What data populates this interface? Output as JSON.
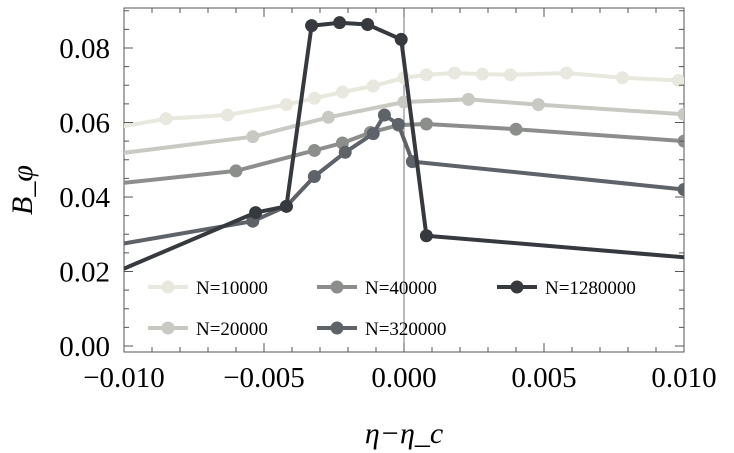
{
  "chart_data": {
    "type": "line",
    "xlabel": "η−η_c",
    "ylabel": "B_φ",
    "xlim": [
      -0.01,
      0.01
    ],
    "ylim": [
      0.0,
      0.09
    ],
    "x_ticks": [
      -0.01,
      -0.005,
      0.0,
      0.005,
      0.01
    ],
    "x_tick_labels": [
      "−0.010",
      "−0.005",
      "0.000",
      "0.005",
      "0.010"
    ],
    "y_ticks": [
      0.0,
      0.02,
      0.04,
      0.06,
      0.08
    ],
    "y_tick_labels": [
      "0.00",
      "0.02",
      "0.04",
      "0.06",
      "0.08"
    ],
    "vertical_line_x": 0.0,
    "legend_position": "bottom-center",
    "series": [
      {
        "name": "N=10000",
        "color": "#e8e8df",
        "points": [
          [
            -0.0104,
            0.0585
          ],
          [
            -0.0085,
            0.061
          ],
          [
            -0.0063,
            0.062
          ],
          [
            -0.0042,
            0.0648
          ],
          [
            -0.0032,
            0.0665
          ],
          [
            -0.0022,
            0.0682
          ],
          [
            -0.0011,
            0.0698
          ],
          [
            0.0,
            0.072
          ],
          [
            0.0008,
            0.0728
          ],
          [
            0.0018,
            0.0733
          ],
          [
            0.0028,
            0.073
          ],
          [
            0.0038,
            0.0728
          ],
          [
            0.0058,
            0.0733
          ],
          [
            0.0078,
            0.072
          ],
          [
            0.0098,
            0.0713
          ]
        ],
        "markers": [
          [
            -0.0085,
            0.061
          ],
          [
            -0.0063,
            0.062
          ],
          [
            -0.0042,
            0.0648
          ],
          [
            -0.0032,
            0.0665
          ],
          [
            -0.0022,
            0.0682
          ],
          [
            -0.0011,
            0.0698
          ],
          [
            0.0,
            0.072
          ],
          [
            0.0008,
            0.0728
          ],
          [
            0.0018,
            0.0733
          ],
          [
            0.0028,
            0.073
          ],
          [
            0.0038,
            0.0728
          ],
          [
            0.0058,
            0.0733
          ],
          [
            0.0078,
            0.072
          ],
          [
            0.0098,
            0.0713
          ]
        ]
      },
      {
        "name": "N=20000",
        "color": "#c9c9c3",
        "points": [
          [
            -0.0104,
            0.0515
          ],
          [
            -0.0054,
            0.0562
          ],
          [
            -0.0027,
            0.0614
          ],
          [
            0.0,
            0.0655
          ],
          [
            0.0023,
            0.0662
          ],
          [
            0.0048,
            0.0648
          ],
          [
            0.01,
            0.0622
          ]
        ],
        "markers": [
          [
            -0.0054,
            0.0562
          ],
          [
            -0.0027,
            0.0614
          ],
          [
            0.0,
            0.0655
          ],
          [
            0.0023,
            0.0662
          ],
          [
            0.0048,
            0.0648
          ],
          [
            0.01,
            0.0622
          ]
        ]
      },
      {
        "name": "N=40000",
        "color": "#8c8e8c",
        "points": [
          [
            -0.0104,
            0.0435
          ],
          [
            -0.006,
            0.047
          ],
          [
            -0.0032,
            0.0525
          ],
          [
            -0.0022,
            0.0545
          ],
          [
            -0.0012,
            0.0573
          ],
          [
            -0.0002,
            0.0593
          ],
          [
            0.0008,
            0.0596
          ],
          [
            0.004,
            0.0582
          ],
          [
            0.01,
            0.055
          ]
        ],
        "markers": [
          [
            -0.006,
            0.047
          ],
          [
            -0.0032,
            0.0525
          ],
          [
            -0.0022,
            0.0545
          ],
          [
            -0.0012,
            0.0573
          ],
          [
            -0.0002,
            0.0593
          ],
          [
            0.0008,
            0.0596
          ],
          [
            0.004,
            0.0582
          ],
          [
            0.01,
            0.055
          ]
        ]
      },
      {
        "name": "N=320000",
        "color": "#5d6369",
        "points": [
          [
            -0.0104,
            0.027
          ],
          [
            -0.0054,
            0.0335
          ],
          [
            -0.0042,
            0.0375
          ],
          [
            -0.0032,
            0.0455
          ],
          [
            -0.0021,
            0.052
          ],
          [
            -0.0011,
            0.057
          ],
          [
            -0.0007,
            0.062
          ],
          [
            -0.0002,
            0.0595
          ],
          [
            0.0003,
            0.0495
          ],
          [
            0.01,
            0.042
          ]
        ],
        "markers": [
          [
            -0.0054,
            0.0335
          ],
          [
            -0.0042,
            0.0375
          ],
          [
            -0.0032,
            0.0455
          ],
          [
            -0.0021,
            0.052
          ],
          [
            -0.0011,
            0.057
          ],
          [
            -0.0007,
            0.062
          ],
          [
            -0.0002,
            0.0595
          ],
          [
            0.0003,
            0.0495
          ],
          [
            0.01,
            0.042
          ]
        ]
      },
      {
        "name": "N=1280000",
        "color": "#36393e",
        "points": [
          [
            -0.0104,
            0.0195
          ],
          [
            -0.0053,
            0.0358
          ],
          [
            -0.0042,
            0.0375
          ],
          [
            -0.0033,
            0.086
          ],
          [
            -0.0023,
            0.0868
          ],
          [
            -0.0013,
            0.0863
          ],
          [
            -0.0001,
            0.0823
          ],
          [
            0.0008,
            0.0296
          ],
          [
            0.01,
            0.0238
          ]
        ],
        "markers": [
          [
            -0.0053,
            0.0358
          ],
          [
            -0.0042,
            0.0375
          ],
          [
            -0.0033,
            0.086
          ],
          [
            -0.0023,
            0.0868
          ],
          [
            -0.0013,
            0.0863
          ],
          [
            -0.0001,
            0.0823
          ],
          [
            0.0008,
            0.0296
          ]
        ]
      }
    ],
    "legend_layout": [
      [
        "N=10000",
        "N=40000",
        "N=1280000"
      ],
      [
        "N=20000",
        "N=320000"
      ]
    ]
  }
}
